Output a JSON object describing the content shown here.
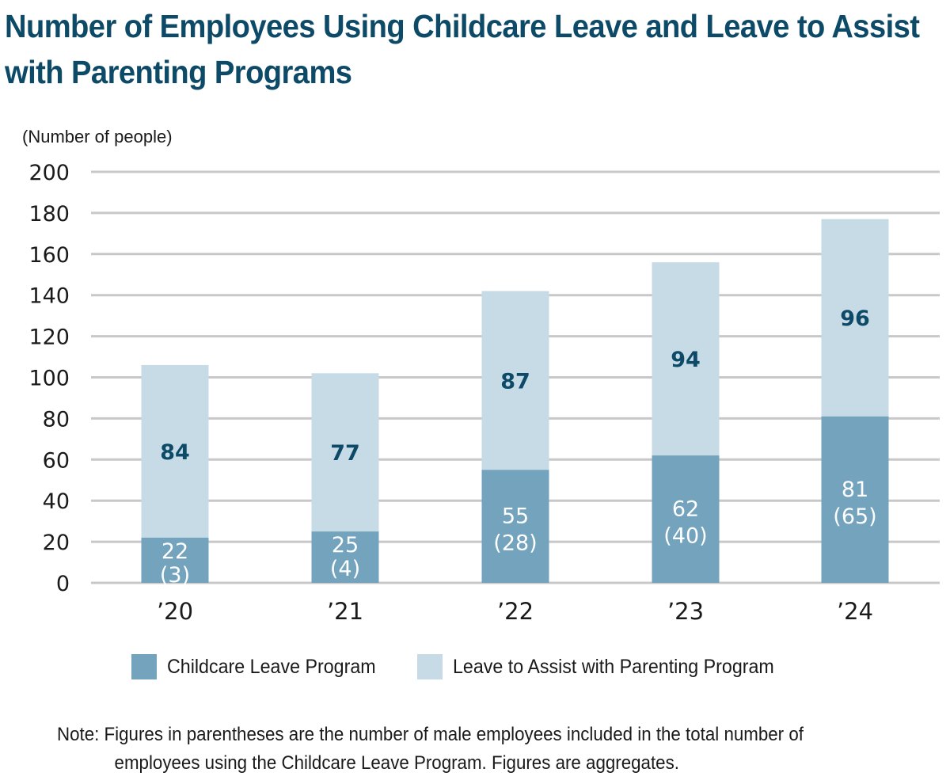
{
  "title": {
    "line1": "Number of Employees Using Childcare Leave and Leave to Assist",
    "line2": "with Parenting Programs"
  },
  "colors": {
    "childcare": "#73a3bd",
    "parenting": "#c7dbe6",
    "title": "#0d4a68",
    "grid": "#c8c8c8",
    "label_on_light": "#0d4a68",
    "label_on_dark": "#ffffff"
  },
  "chart_data": {
    "type": "bar",
    "stacked": true,
    "title": "Number of Employees Using Childcare Leave and Leave to Assist with Parenting Programs",
    "xlabel": "",
    "ylabel": "(Number of people)",
    "ylim": [
      0,
      200
    ],
    "yticks": [
      0,
      20,
      40,
      60,
      80,
      100,
      120,
      140,
      160,
      180,
      200
    ],
    "ytick_labels": [
      "0",
      "20",
      "40",
      "60",
      "80",
      "100",
      "120",
      "140",
      "160",
      "180",
      "200"
    ],
    "grid": true,
    "categories": [
      "’20",
      "’21",
      "’22",
      "’23",
      "’24"
    ],
    "series": [
      {
        "name": "Childcare Leave Program",
        "values": [
          22,
          25,
          55,
          62,
          81
        ],
        "male_values": [
          3,
          4,
          28,
          40,
          65
        ],
        "labels": [
          "22",
          "25",
          "55",
          "62",
          "81"
        ],
        "sublabels": [
          "(3)",
          "(4)",
          "(28)",
          "(40)",
          "(65)"
        ]
      },
      {
        "name": "Leave to Assist with Parenting Program",
        "values": [
          84,
          77,
          87,
          94,
          96
        ],
        "labels": [
          "84",
          "77",
          "87",
          "94",
          "96"
        ]
      }
    ],
    "legend_position": "bottom-center"
  },
  "legend": {
    "items": [
      {
        "label": "Childcare Leave Program"
      },
      {
        "label": "Leave to Assist with Parenting Program"
      }
    ]
  },
  "note": {
    "line1": "Note: Figures in parentheses are the number of male employees included in the total number of",
    "line2": "employees using the Childcare Leave Program. Figures are aggregates."
  }
}
